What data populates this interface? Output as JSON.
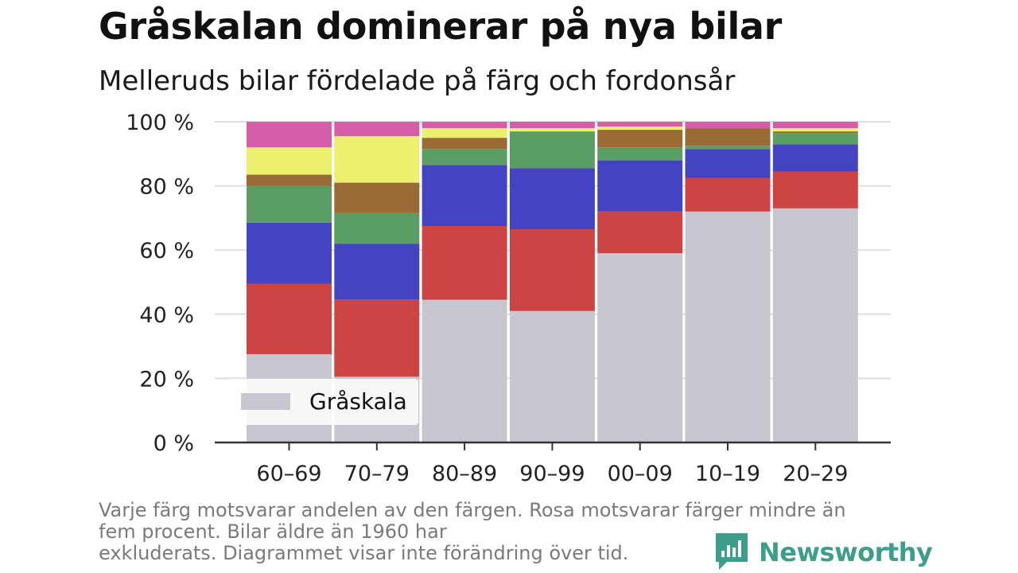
{
  "header": {
    "title": "Gråskalan dominerar på nya bilar",
    "subtitle": "Melleruds bilar fördelade på färg och fordonsår"
  },
  "footnote": {
    "line1": "Varje färg motsvarar andelen av den färgen. Rosa motsvarar färger mindre än",
    "line2": "fem procent. Bilar äldre än 1960 har",
    "line3": "exkluderats. Diagrammet visar inte förändring över tid."
  },
  "brand": {
    "name": "Newsworthy",
    "icon": "newsworthy-logo-icon",
    "color": "#3d9e8c"
  },
  "chart_data": {
    "type": "bar",
    "stacked": true,
    "categories": [
      "60–69",
      "70–79",
      "80–89",
      "90–99",
      "00–09",
      "10–19",
      "20–29"
    ],
    "yticks": [
      "0 %",
      "20 %",
      "40 %",
      "60 %",
      "80 %",
      "100 %"
    ],
    "ylim": [
      0,
      100
    ],
    "grid": true,
    "legend": {
      "position": "bottom-left",
      "entries": [
        "Gråskala"
      ]
    },
    "series": [
      {
        "name": "Gråskala",
        "color": "#c8c6d1",
        "values": [
          27.5,
          20.5,
          44.5,
          41,
          59,
          72,
          73
        ]
      },
      {
        "color": "#cc4444",
        "values": [
          22,
          24,
          23,
          25.5,
          13,
          10.5,
          11.5
        ]
      },
      {
        "color": "#4444c2",
        "values": [
          19,
          17.5,
          19,
          19,
          16,
          9,
          8.5
        ]
      },
      {
        "color": "#5a9e64",
        "values": [
          11.5,
          9.5,
          5,
          11.5,
          4,
          1,
          3.5
        ]
      },
      {
        "color": "#9a6b35",
        "values": [
          3.5,
          9.5,
          3.5,
          0,
          5.5,
          5.5,
          0.5
        ]
      },
      {
        "color": "#ecf06e",
        "values": [
          8.5,
          14.5,
          3,
          1,
          1,
          0,
          1
        ]
      },
      {
        "color": "#d65ea8",
        "values": [
          8,
          4.5,
          2,
          2,
          1.5,
          2,
          2
        ]
      }
    ]
  }
}
